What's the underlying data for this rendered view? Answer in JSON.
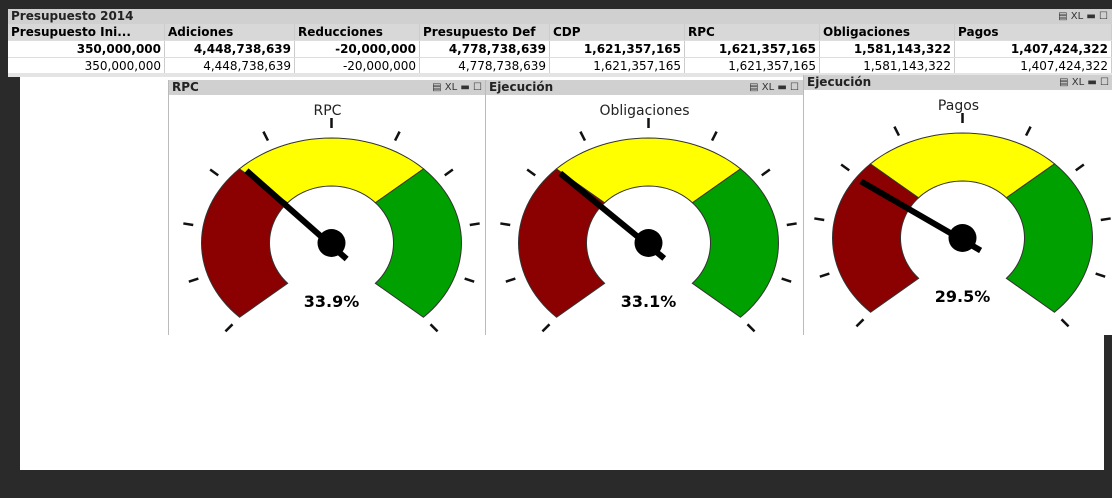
{
  "window": {
    "title": "Presupuesto 2014",
    "export_label": "XL"
  },
  "table": {
    "headers": [
      "Presupuesto Ini...",
      "Adiciones",
      "Reducciones",
      "Presupuesto Def",
      "CDP",
      "RPC",
      "Obligaciones",
      "Pagos"
    ],
    "rows": [
      [
        "350,000,000",
        "4,448,738,639",
        "-20,000,000",
        "4,778,738,639",
        "1,621,357,165",
        "1,621,357,165",
        "1,581,143,322",
        "1,407,424,322"
      ],
      [
        "350,000,000",
        "4,448,738,639",
        "-20,000,000",
        "4,778,738,639",
        "1,621,357,165",
        "1,621,357,165",
        "1,581,143,322",
        "1,407,424,322"
      ]
    ]
  },
  "gauge_scale": {
    "range": [
      0,
      100
    ],
    "ticks": [
      0,
      10,
      20,
      30,
      40,
      50,
      60,
      70,
      80,
      90,
      100
    ],
    "bands": [
      {
        "from": 0,
        "to": 33.3,
        "color": "#8b0000"
      },
      {
        "from": 33.3,
        "to": 66.7,
        "color": "#ffff00"
      },
      {
        "from": 66.7,
        "to": 100,
        "color": "#00a000"
      }
    ]
  },
  "gauges": [
    {
      "caption": "RPC",
      "title": "RPC",
      "value": 33.9,
      "value_label": "33.9%"
    },
    {
      "caption": "Ejecución",
      "title": "Obligaciones",
      "value": 33.1,
      "value_label": "33.1%"
    },
    {
      "caption": "Ejecución",
      "title": "Pagos",
      "value": 29.5,
      "value_label": "29.5%"
    }
  ]
}
